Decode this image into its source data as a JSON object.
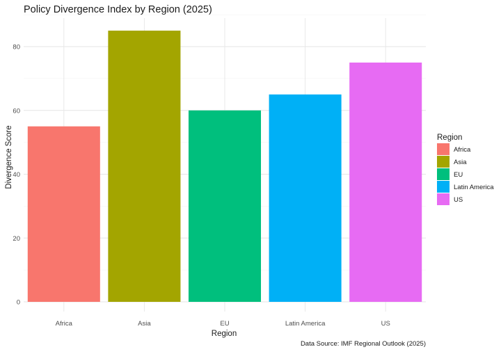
{
  "chart_data": {
    "type": "bar",
    "title": "Policy Divergence Index by Region (2025)",
    "xlabel": "Region",
    "ylabel": "Divergence Score",
    "caption": "Data Source: IMF Regional Outlook (2025)",
    "categories": [
      "Africa",
      "Asia",
      "EU",
      "Latin America",
      "US"
    ],
    "values": [
      55,
      85,
      60,
      65,
      75
    ],
    "colors": [
      "#F8766D",
      "#A3A500",
      "#00BF7D",
      "#00B0F6",
      "#E76BF3"
    ],
    "ylim": [
      0,
      90
    ],
    "y_ticks": [
      0,
      20,
      40,
      60,
      80
    ],
    "y_tick_labels": [
      "0",
      "20",
      "40",
      "60",
      "80"
    ],
    "grid": true,
    "legend": {
      "title": "Region",
      "placement": "right",
      "entries": [
        "Africa",
        "Asia",
        "EU",
        "Latin America",
        "US"
      ]
    }
  }
}
